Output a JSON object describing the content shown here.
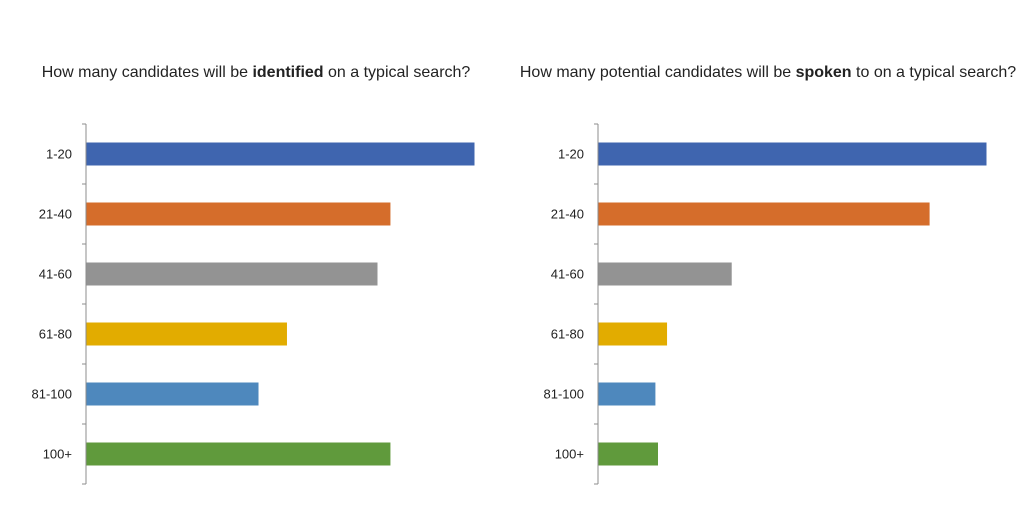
{
  "chart_data": [
    {
      "type": "bar",
      "orientation": "horizontal",
      "title_before": "How many candidates will be ",
      "title_bold": "identified",
      "title_after": " on a typical search?",
      "categories": [
        "1-20",
        "21-40",
        "41-60",
        "61-80",
        "81-100",
        "100+"
      ],
      "values": [
        30,
        23.5,
        22.5,
        15.5,
        13.3,
        23.5
      ],
      "colors": [
        "#3F65AF",
        "#D56D2B",
        "#939393",
        "#E2AC00",
        "#4E88BD",
        "#609A3C"
      ],
      "xlim": [
        0,
        30
      ],
      "grid": false,
      "legend": "none"
    },
    {
      "type": "bar",
      "orientation": "horizontal",
      "title_before": "How many potential candidates will be ",
      "title_bold": "spoken",
      "title_after": " to on a typical search?",
      "categories": [
        "1-20",
        "21-40",
        "41-60",
        "61-80",
        "81-100",
        "100+"
      ],
      "values": [
        30,
        25.6,
        10.3,
        5.3,
        4.4,
        4.6
      ],
      "colors": [
        "#3F65AF",
        "#D56D2B",
        "#939393",
        "#E2AC00",
        "#4E88BD",
        "#609A3C"
      ],
      "xlim": [
        0,
        30
      ],
      "grid": false,
      "legend": "none"
    }
  ]
}
